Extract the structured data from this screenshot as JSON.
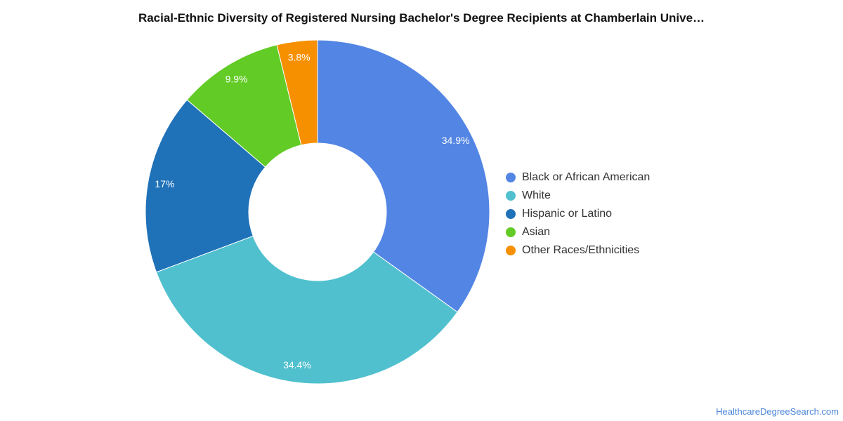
{
  "title": "Racial-Ethnic Diversity of Registered Nursing Bachelor's Degree Recipients at Chamberlain Unive…",
  "source": "HealthcareDegreeSearch.com",
  "chart_data": {
    "type": "pie",
    "donut": true,
    "legend_position": "right",
    "categories": [
      "Black or African American",
      "White",
      "Hispanic or Latino",
      "Asian",
      "Other Races/Ethnicities"
    ],
    "values": [
      34.9,
      34.4,
      17,
      9.9,
      3.8
    ],
    "labels": [
      "34.9%",
      "34.4%",
      "17%",
      "9.9%",
      "3.8%"
    ],
    "colors": [
      "#5385e4",
      "#50c0ce",
      "#1f71b8",
      "#62cb26",
      "#f69001"
    ]
  }
}
